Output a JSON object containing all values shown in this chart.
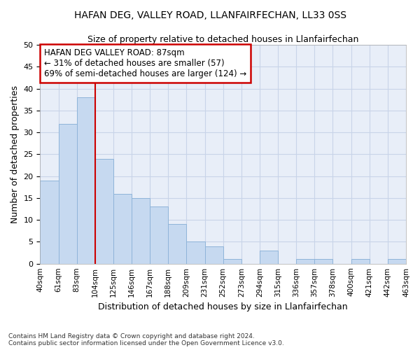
{
  "title": "HAFAN DEG, VALLEY ROAD, LLANFAIRFECHAN, LL33 0SS",
  "subtitle": "Size of property relative to detached houses in Llanfairfechan",
  "xlabel": "Distribution of detached houses by size in Llanfairfechan",
  "ylabel": "Number of detached properties",
  "footer_line1": "Contains HM Land Registry data © Crown copyright and database right 2024.",
  "footer_line2": "Contains public sector information licensed under the Open Government Licence v3.0.",
  "bar_values": [
    19,
    32,
    38,
    24,
    16,
    15,
    13,
    9,
    5,
    4,
    1,
    0,
    3,
    0,
    1,
    1,
    0,
    1,
    0,
    1
  ],
  "bar_labels": [
    "40sqm",
    "61sqm",
    "83sqm",
    "104sqm",
    "125sqm",
    "146sqm",
    "167sqm",
    "188sqm",
    "209sqm",
    "231sqm",
    "252sqm",
    "273sqm",
    "294sqm",
    "315sqm",
    "336sqm",
    "357sqm",
    "378sqm",
    "400sqm",
    "421sqm",
    "442sqm",
    "463sqm"
  ],
  "bar_color": "#c6d9f0",
  "bar_edge_color": "#8fb4d9",
  "grid_color": "#c8d4e8",
  "background_color": "#e8eef8",
  "vline_x": 2.5,
  "vline_color": "#cc0000",
  "annotation_text": "HAFAN DEG VALLEY ROAD: 87sqm\n← 31% of detached houses are smaller (57)\n69% of semi-detached houses are larger (124) →",
  "annotation_box_color": "#ffffff",
  "annotation_border_color": "#cc0000",
  "ylim": [
    0,
    50
  ],
  "yticks": [
    0,
    5,
    10,
    15,
    20,
    25,
    30,
    35,
    40,
    45,
    50
  ]
}
